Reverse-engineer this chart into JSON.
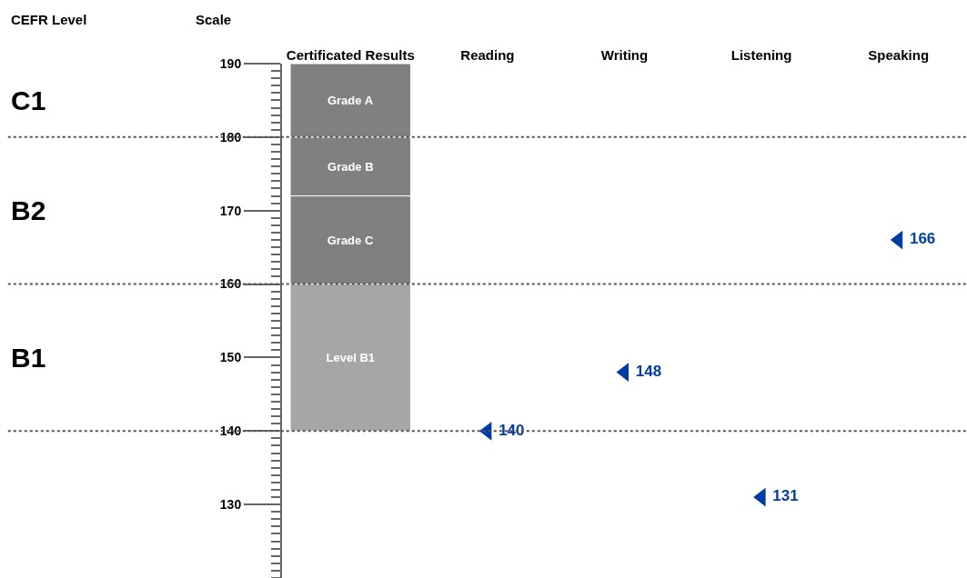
{
  "chart_data": {
    "type": "scatter",
    "ylabel": "Scale",
    "categories": [
      "Certificated Results",
      "Reading",
      "Writing",
      "Listening",
      "Speaking"
    ],
    "ylim": [
      120,
      190
    ],
    "yticks": [
      130,
      140,
      150,
      160,
      170,
      180,
      190
    ],
    "grid": false,
    "legend": false,
    "marker": "triangle",
    "series": [
      {
        "type": "bar",
        "name": "Level B1",
        "color": "#a6a6a6",
        "base": [
          140,
          null,
          null,
          null,
          null
        ],
        "values": [
          20,
          null,
          null,
          null,
          null
        ]
      },
      {
        "type": "bar",
        "name": "Grade C",
        "color": "#808080",
        "base": [
          160,
          null,
          null,
          null,
          null
        ],
        "values": [
          12,
          null,
          null,
          null,
          null
        ]
      },
      {
        "type": "bar",
        "name": "Grade B",
        "color": "#808080",
        "base": [
          172,
          null,
          null,
          null,
          null
        ],
        "values": [
          8,
          null,
          null,
          null,
          null
        ]
      },
      {
        "type": "bar",
        "name": "Grade A",
        "color": "#808080",
        "base": [
          180,
          null,
          null,
          null,
          null
        ],
        "values": [
          10,
          null,
          null,
          null,
          null
        ]
      },
      {
        "color": "#003da5",
        "values": [
          null,
          140,
          148,
          131,
          166
        ],
        "value_labels": [
          null,
          "140",
          "148",
          "131",
          "166"
        ]
      }
    ],
    "ref_lines": [
      {
        "axis": "y",
        "value": 140,
        "color": "#555555",
        "line_style": "dotted"
      },
      {
        "axis": "y",
        "value": 160,
        "color": "#555555",
        "line_style": "dotted"
      },
      {
        "axis": "y",
        "value": 180,
        "color": "#555555",
        "line_style": "dotted"
      }
    ],
    "annotations": [
      "CEFR Level",
      "C1",
      "B2",
      "B1"
    ]
  }
}
